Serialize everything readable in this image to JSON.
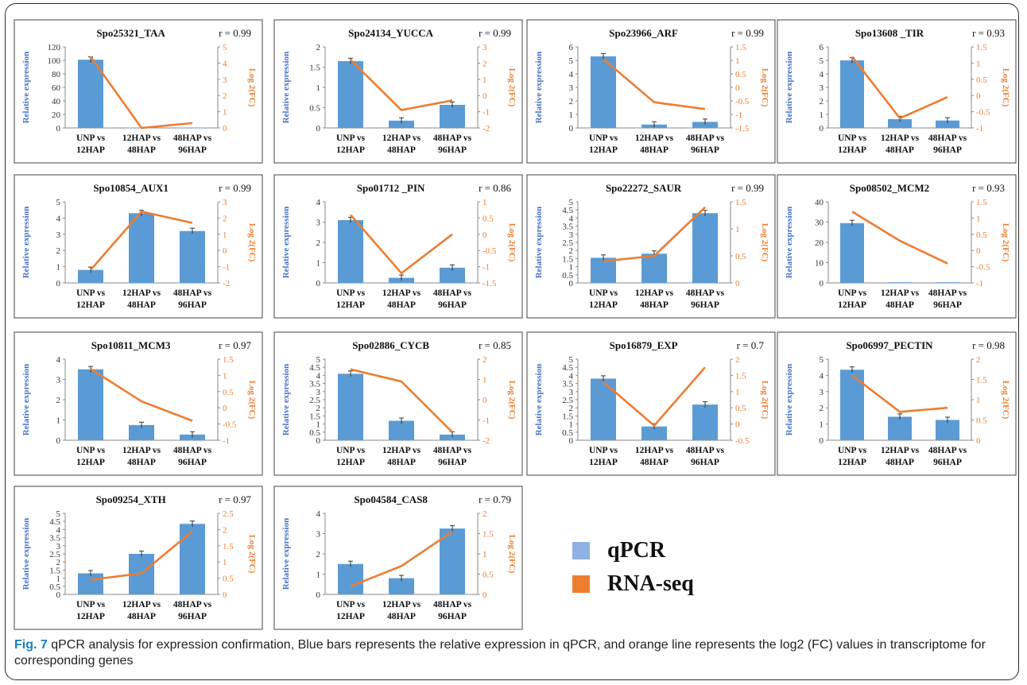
{
  "legend": {
    "qpcr_label": "qPCR",
    "rnaseq_label": "RNA-seq",
    "qpcr_color": "#5b9bd5",
    "rnaseq_color": "#ed7d31"
  },
  "caption": {
    "label": "Fig. 7",
    "text": " qPCR analysis for expression confirmation, Blue bars represents the relative expression in qPCR, and orange line represents the log2 (FC) values in transcriptome for corresponding genes"
  },
  "chart_data": [
    {
      "type": "bar+line",
      "title": "Spo25321_TAA",
      "r": "r = 0.99",
      "categories": [
        "UNP vs 12HAP",
        "12HAP vs 48HAP",
        "48HAP vs 96HAP"
      ],
      "ylabel": "Relative expression",
      "y2label": "Log 2(FC)",
      "ylim": [
        0,
        120
      ],
      "yticks": [
        0,
        20,
        40,
        60,
        80,
        100,
        120
      ],
      "y2lim": [
        0,
        5
      ],
      "y2ticks": [
        0,
        1,
        2,
        3,
        4,
        5
      ],
      "series": [
        {
          "name": "qPCR",
          "type": "bar",
          "values": [
            101,
            0.5,
            0.3
          ]
        },
        {
          "name": "RNA-seq",
          "type": "line",
          "values": [
            4.4,
            0.0,
            0.3
          ]
        }
      ]
    },
    {
      "type": "bar+line",
      "title": "Spo24134_YUCCA",
      "r": "r = 0.99",
      "categories": [
        "UNP vs 12HAP",
        "12HAP vs 48HAP",
        "48HAP vs 96HAP"
      ],
      "ylabel": "Relative expression",
      "y2label": "Log 2(FC)",
      "ylim": [
        0,
        2
      ],
      "yticks": [
        0,
        0.5,
        1,
        1.5,
        2
      ],
      "y2lim": [
        -2,
        3
      ],
      "y2ticks": [
        -2,
        -1,
        0,
        1,
        2,
        3
      ],
      "series": [
        {
          "name": "qPCR",
          "type": "bar",
          "values": [
            1.65,
            0.18,
            0.57
          ]
        },
        {
          "name": "RNA-seq",
          "type": "line",
          "values": [
            2.2,
            -0.9,
            -0.3
          ]
        }
      ]
    },
    {
      "type": "bar+line",
      "title": "Spo23966_ARF",
      "r": "r = 0.99",
      "categories": [
        "UNP vs 12HAP",
        "12HAP vs 48HAP",
        "48HAP vs 96HAP"
      ],
      "ylabel": "Relative expression",
      "y2label": "Log 2(FC)",
      "ylim": [
        0,
        6
      ],
      "yticks": [
        0,
        1,
        2,
        3,
        4,
        5,
        6
      ],
      "y2lim": [
        -1.5,
        1.5
      ],
      "y2ticks": [
        -1.5,
        -1,
        -0.5,
        0,
        0.5,
        1,
        1.5
      ],
      "series": [
        {
          "name": "qPCR",
          "type": "bar",
          "values": [
            5.3,
            0.25,
            0.45
          ]
        },
        {
          "name": "RNA-seq",
          "type": "line",
          "values": [
            1.05,
            -0.55,
            -0.8
          ]
        }
      ]
    },
    {
      "type": "bar+line",
      "title": "Spo13608 _TIR",
      "r": "r = 0.93",
      "categories": [
        "UNP vs 12HAP",
        "12HAP vs 48HAP",
        "48HAP vs 96HAP"
      ],
      "ylabel": "Relative expression",
      "y2label": "Log 2(FC)",
      "ylim": [
        0,
        6
      ],
      "yticks": [
        0,
        1,
        2,
        3,
        4,
        5,
        6
      ],
      "y2lim": [
        -1,
        1.5
      ],
      "y2ticks": [
        -1,
        -0.5,
        0,
        0.5,
        1,
        1.5
      ],
      "series": [
        {
          "name": "qPCR",
          "type": "bar",
          "values": [
            5.0,
            0.65,
            0.55
          ]
        },
        {
          "name": "RNA-seq",
          "type": "line",
          "values": [
            1.2,
            -0.7,
            -0.05
          ]
        }
      ]
    },
    {
      "type": "bar+line",
      "title": "Spo10854_AUX1",
      "r": "r = 0.99",
      "categories": [
        "UNP vs 12HAP",
        "12HAP vs 48HAP",
        "48HAP vs 96HAP"
      ],
      "ylabel": "Relative expression",
      "y2label": "Log 2(FC)",
      "ylim": [
        0,
        5
      ],
      "yticks": [
        0,
        1,
        2,
        3,
        4,
        5
      ],
      "y2lim": [
        -2,
        3
      ],
      "y2ticks": [
        -2,
        -1,
        0,
        1,
        2,
        3
      ],
      "series": [
        {
          "name": "qPCR",
          "type": "bar",
          "values": [
            0.8,
            4.3,
            3.2
          ]
        },
        {
          "name": "RNA-seq",
          "type": "line",
          "values": [
            -1.2,
            2.4,
            1.7
          ]
        }
      ]
    },
    {
      "type": "bar+line",
      "title": "Spo01712 _PIN",
      "r": "r = 0.86",
      "categories": [
        "UNP vs 12HAP",
        "12HAP vs 48HAP",
        "48HAP vs 96HAP"
      ],
      "ylabel": "Relative expression",
      "y2label": "Log 2(FC)",
      "ylim": [
        0,
        4
      ],
      "yticks": [
        0,
        1,
        2,
        3,
        4
      ],
      "y2lim": [
        -1.5,
        1
      ],
      "y2ticks": [
        -1.5,
        -1,
        -0.5,
        0,
        0.5,
        1
      ],
      "series": [
        {
          "name": "qPCR",
          "type": "bar",
          "values": [
            3.1,
            0.25,
            0.75
          ]
        },
        {
          "name": "RNA-seq",
          "type": "line",
          "values": [
            0.6,
            -1.2,
            0.0
          ]
        }
      ]
    },
    {
      "type": "bar+line",
      "title": "Spo22272_SAUR",
      "r": "r = 0.99",
      "categories": [
        "UNP vs 12HAP",
        "12HAP vs 48HAP",
        "48HAP vs 96HAP"
      ],
      "ylabel": "Relative expression",
      "y2label": "Log 2(FC)",
      "ylim": [
        0,
        5
      ],
      "yticks": [
        0,
        0.5,
        1,
        1.5,
        2,
        2.5,
        3,
        3.5,
        4,
        4.5,
        5
      ],
      "y2lim": [
        0,
        1.5
      ],
      "y2ticks": [
        0,
        0.5,
        1,
        1.5
      ],
      "series": [
        {
          "name": "qPCR",
          "type": "bar",
          "values": [
            1.55,
            1.8,
            4.3
          ]
        },
        {
          "name": "RNA-seq",
          "type": "line",
          "values": [
            0.4,
            0.5,
            1.4
          ]
        }
      ]
    },
    {
      "type": "bar+line",
      "title": "Spo08502_MCM2",
      "r": "r = 0.93",
      "categories": [
        "UNP vs 12HAP",
        "12HAP vs 48HAP",
        "48HAP vs 96HAP"
      ],
      "ylabel": "Relative expression",
      "y2label": "Log 2(FC)",
      "ylim": [
        0,
        40
      ],
      "yticks": [
        0,
        10,
        20,
        30,
        40
      ],
      "y2lim": [
        -1,
        1.5
      ],
      "y2ticks": [
        -1,
        -0.5,
        0,
        0.5,
        1,
        1.5
      ],
      "series": [
        {
          "name": "qPCR",
          "type": "bar",
          "values": [
            29.5,
            0.3,
            0.3
          ]
        },
        {
          "name": "RNA-seq",
          "type": "line",
          "values": [
            1.2,
            0.3,
            -0.4
          ]
        }
      ]
    },
    {
      "type": "bar+line",
      "title": "Spo10811_MCM3",
      "r": "r = 0.97",
      "categories": [
        "UNP vs 12HAP",
        "12HAP vs 48HAP",
        "48HAP vs 96HAP"
      ],
      "ylabel": "Relative expression",
      "y2label": "Log 2(FC)",
      "ylim": [
        0,
        4
      ],
      "yticks": [
        0,
        1,
        2,
        3,
        4
      ],
      "y2lim": [
        -1,
        1.5
      ],
      "y2ticks": [
        -1,
        -0.5,
        0,
        0.5,
        1,
        1.5
      ],
      "series": [
        {
          "name": "qPCR",
          "type": "bar",
          "values": [
            3.5,
            0.75,
            0.28
          ]
        },
        {
          "name": "RNA-seq",
          "type": "line",
          "values": [
            1.2,
            0.2,
            -0.4
          ]
        }
      ]
    },
    {
      "type": "bar+line",
      "title": "Spo02886_CYCB",
      "r": "r = 0.85",
      "categories": [
        "UNP vs 12HAP",
        "12HAP vs 48HAP",
        "48HAP vs 96HAP"
      ],
      "ylabel": "Relative expression",
      "y2label": "Log 2(FC)",
      "ylim": [
        0,
        5
      ],
      "yticks": [
        0,
        0.5,
        1,
        1.5,
        2,
        2.5,
        3,
        3.5,
        4,
        4.5,
        5
      ],
      "y2lim": [
        -2,
        2
      ],
      "y2ticks": [
        -2,
        -1,
        0,
        1,
        2
      ],
      "series": [
        {
          "name": "qPCR",
          "type": "bar",
          "values": [
            4.1,
            1.2,
            0.35
          ]
        },
        {
          "name": "RNA-seq",
          "type": "line",
          "values": [
            1.5,
            0.9,
            -1.6
          ]
        }
      ]
    },
    {
      "type": "bar+line",
      "title": "Spo16879_EXP",
      "r": "r = 0.7",
      "categories": [
        "UNP vs 12HAP",
        "12HAP vs 48HAP",
        "48HAP vs 96HAP"
      ],
      "ylabel": "Relative expression",
      "y2label": "Log 2(FC)",
      "ylim": [
        0,
        5
      ],
      "yticks": [
        0,
        0.5,
        1,
        1.5,
        2,
        2.5,
        3,
        3.5,
        4,
        4.5,
        5
      ],
      "y2lim": [
        -0.5,
        2
      ],
      "y2ticks": [
        -0.5,
        0,
        0.5,
        1,
        1.5,
        2
      ],
      "series": [
        {
          "name": "qPCR",
          "type": "bar",
          "values": [
            3.8,
            0.85,
            2.2
          ]
        },
        {
          "name": "RNA-seq",
          "type": "line",
          "values": [
            1.3,
            -0.05,
            1.75
          ]
        }
      ]
    },
    {
      "type": "bar+line",
      "title": "Spo06997_PECTIN",
      "r": "r = 0.98",
      "categories": [
        "UNP vs 12HAP",
        "12HAP vs 48HAP",
        "48HAP vs 96HAP"
      ],
      "ylabel": "Relative expression",
      "y2label": "Log 2(FC)",
      "ylim": [
        0,
        5
      ],
      "yticks": [
        0,
        1,
        2,
        3,
        4,
        5
      ],
      "y2lim": [
        0,
        2
      ],
      "y2ticks": [
        0,
        0.5,
        1,
        1.5,
        2
      ],
      "series": [
        {
          "name": "qPCR",
          "type": "bar",
          "values": [
            4.35,
            1.45,
            1.25
          ]
        },
        {
          "name": "RNA-seq",
          "type": "line",
          "values": [
            1.6,
            0.7,
            0.8
          ]
        }
      ]
    },
    {
      "type": "bar+line",
      "title": "Spo09254_XTH",
      "r": "r = 0.97",
      "categories": [
        "UNP vs 12HAP",
        "12HAP vs 48HAP",
        "48HAP vs 96HAP"
      ],
      "ylabel": "Relative expression",
      "y2label": "Log 2(FC)",
      "ylim": [
        0,
        5
      ],
      "yticks": [
        0,
        0.5,
        1,
        1.5,
        2,
        2.5,
        3,
        3.5,
        4,
        4.5,
        5
      ],
      "y2lim": [
        0,
        2.5
      ],
      "y2ticks": [
        0,
        0.5,
        1,
        1.5,
        2,
        2.5
      ],
      "series": [
        {
          "name": "qPCR",
          "type": "bar",
          "values": [
            1.3,
            2.5,
            4.35
          ]
        },
        {
          "name": "RNA-seq",
          "type": "line",
          "values": [
            0.45,
            0.65,
            1.95
          ]
        }
      ]
    },
    {
      "type": "bar+line",
      "title": "Spo04584_CAS8",
      "r": "r = 0.79",
      "categories": [
        "UNP vs 12HAP",
        "12HAP vs 48HAP",
        "48HAP vs 96HAP"
      ],
      "ylabel": "Relative expression",
      "y2label": "Log 2(FC)",
      "ylim": [
        0,
        4
      ],
      "yticks": [
        0,
        1,
        2,
        3,
        4
      ],
      "y2lim": [
        0,
        2
      ],
      "y2ticks": [
        0,
        0.5,
        1,
        1.5,
        2
      ],
      "series": [
        {
          "name": "qPCR",
          "type": "bar",
          "values": [
            1.5,
            0.8,
            3.25
          ]
        },
        {
          "name": "RNA-seq",
          "type": "line",
          "values": [
            0.2,
            0.7,
            1.55
          ]
        }
      ]
    }
  ]
}
